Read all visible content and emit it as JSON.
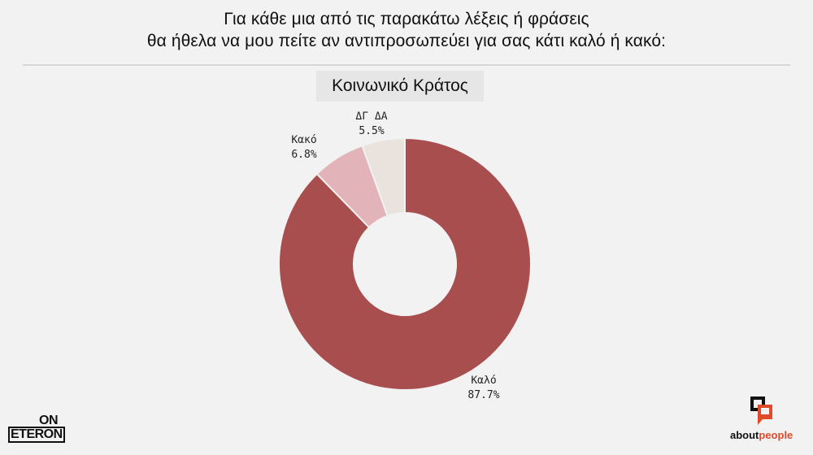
{
  "header": {
    "line1": "Για κάθε μια από τις παρακάτω λέξεις ή φράσεις",
    "line2": "θα ήθελα να μου πείτε αν αντιπροσωπεύει για σας κάτι καλό ή κακό:"
  },
  "subtitle": "Κοινωνικό Κράτος",
  "logos": {
    "left_top": "ON",
    "left_bottom": "ETERON",
    "right_part1": "about",
    "right_part2": "people"
  },
  "chart_data": {
    "type": "pie",
    "style": "donut",
    "slices": [
      {
        "label": "Καλό",
        "value": 87.7,
        "value_label": "87.7%",
        "color": "#a84e4e"
      },
      {
        "label": "Κακό",
        "value": 6.8,
        "value_label": "6.8%",
        "color": "#e2b3b8"
      },
      {
        "label": "ΔΓ ΔΑ",
        "value": 5.5,
        "value_label": "5.5%",
        "color": "#eae3dd"
      }
    ],
    "start": "top",
    "direction": "clockwise"
  },
  "colors": {
    "background": "#f2f2f2",
    "rule": "#d6d6d6",
    "subtitle_bg": "#e6e6e6",
    "accent": "#e04a2a"
  }
}
